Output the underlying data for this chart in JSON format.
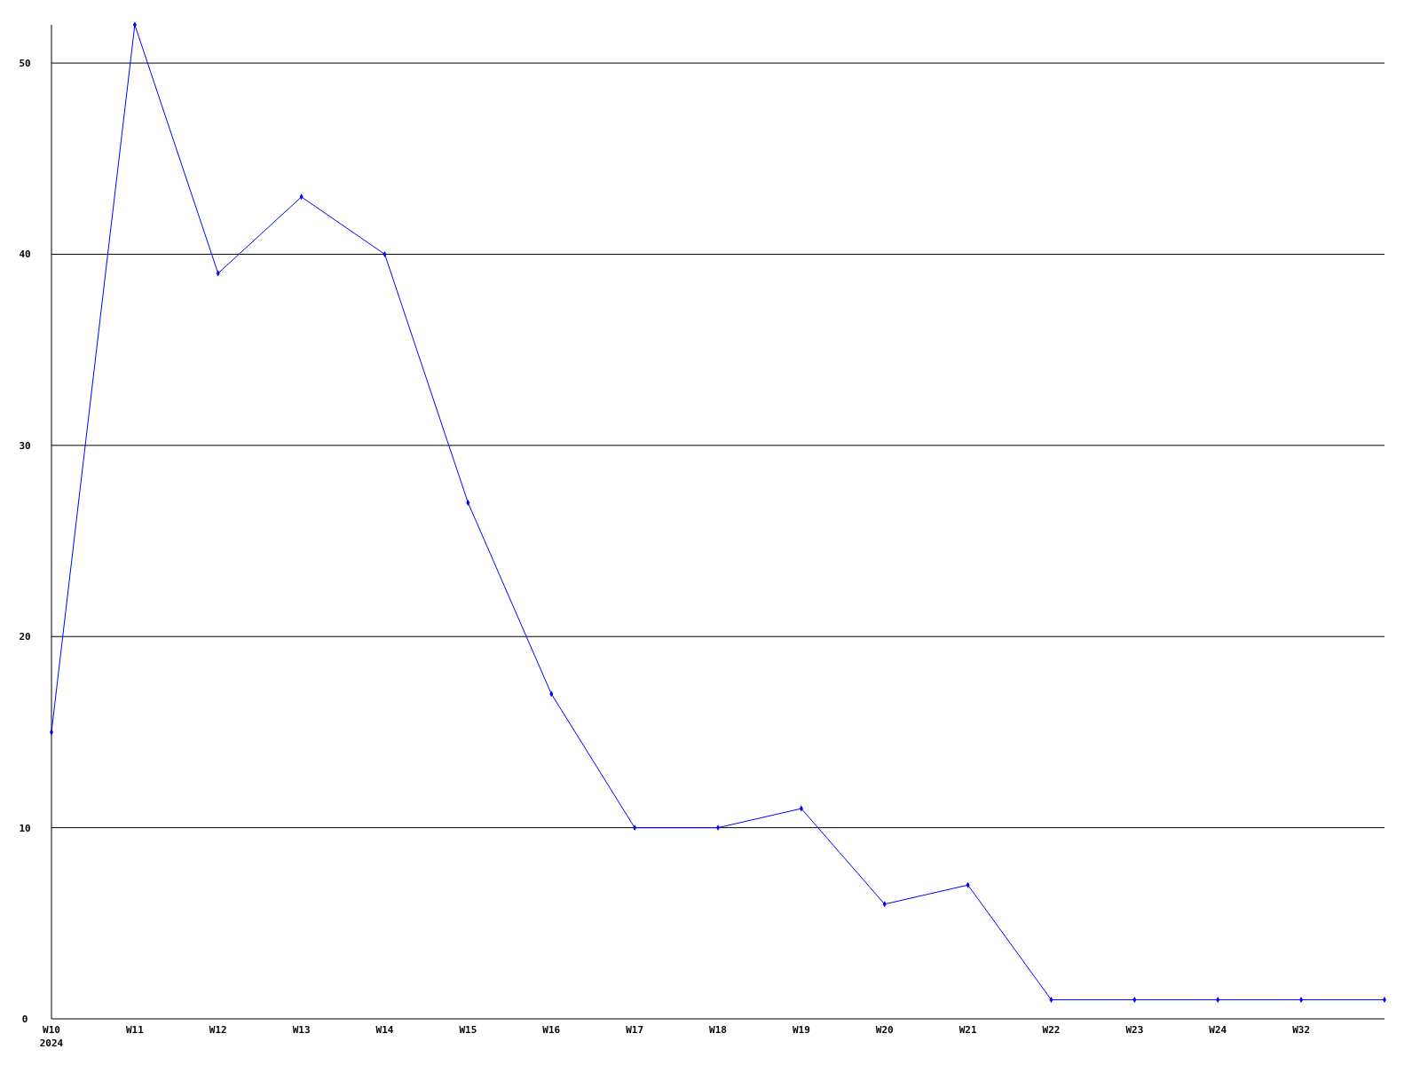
{
  "chart_data": {
    "type": "line",
    "categories": [
      "W10\n2024",
      "W11",
      "W12",
      "W13",
      "W14",
      "W15",
      "W16",
      "W17",
      "W18",
      "W19",
      "W20",
      "W21",
      "W22",
      "W23",
      "W24",
      "W32",
      null
    ],
    "series": [
      {
        "color": "#0000ff",
        "values": [
          15,
          52,
          39,
          43,
          40,
          27,
          17,
          10,
          10,
          11,
          6,
          7,
          1,
          1,
          1,
          1,
          1
        ]
      }
    ],
    "ylim": [
      0,
      52
    ],
    "yticks": [
      0,
      10,
      20,
      30,
      40,
      50
    ],
    "grid": "y",
    "marker": "diamond",
    "line_style": "solid"
  }
}
